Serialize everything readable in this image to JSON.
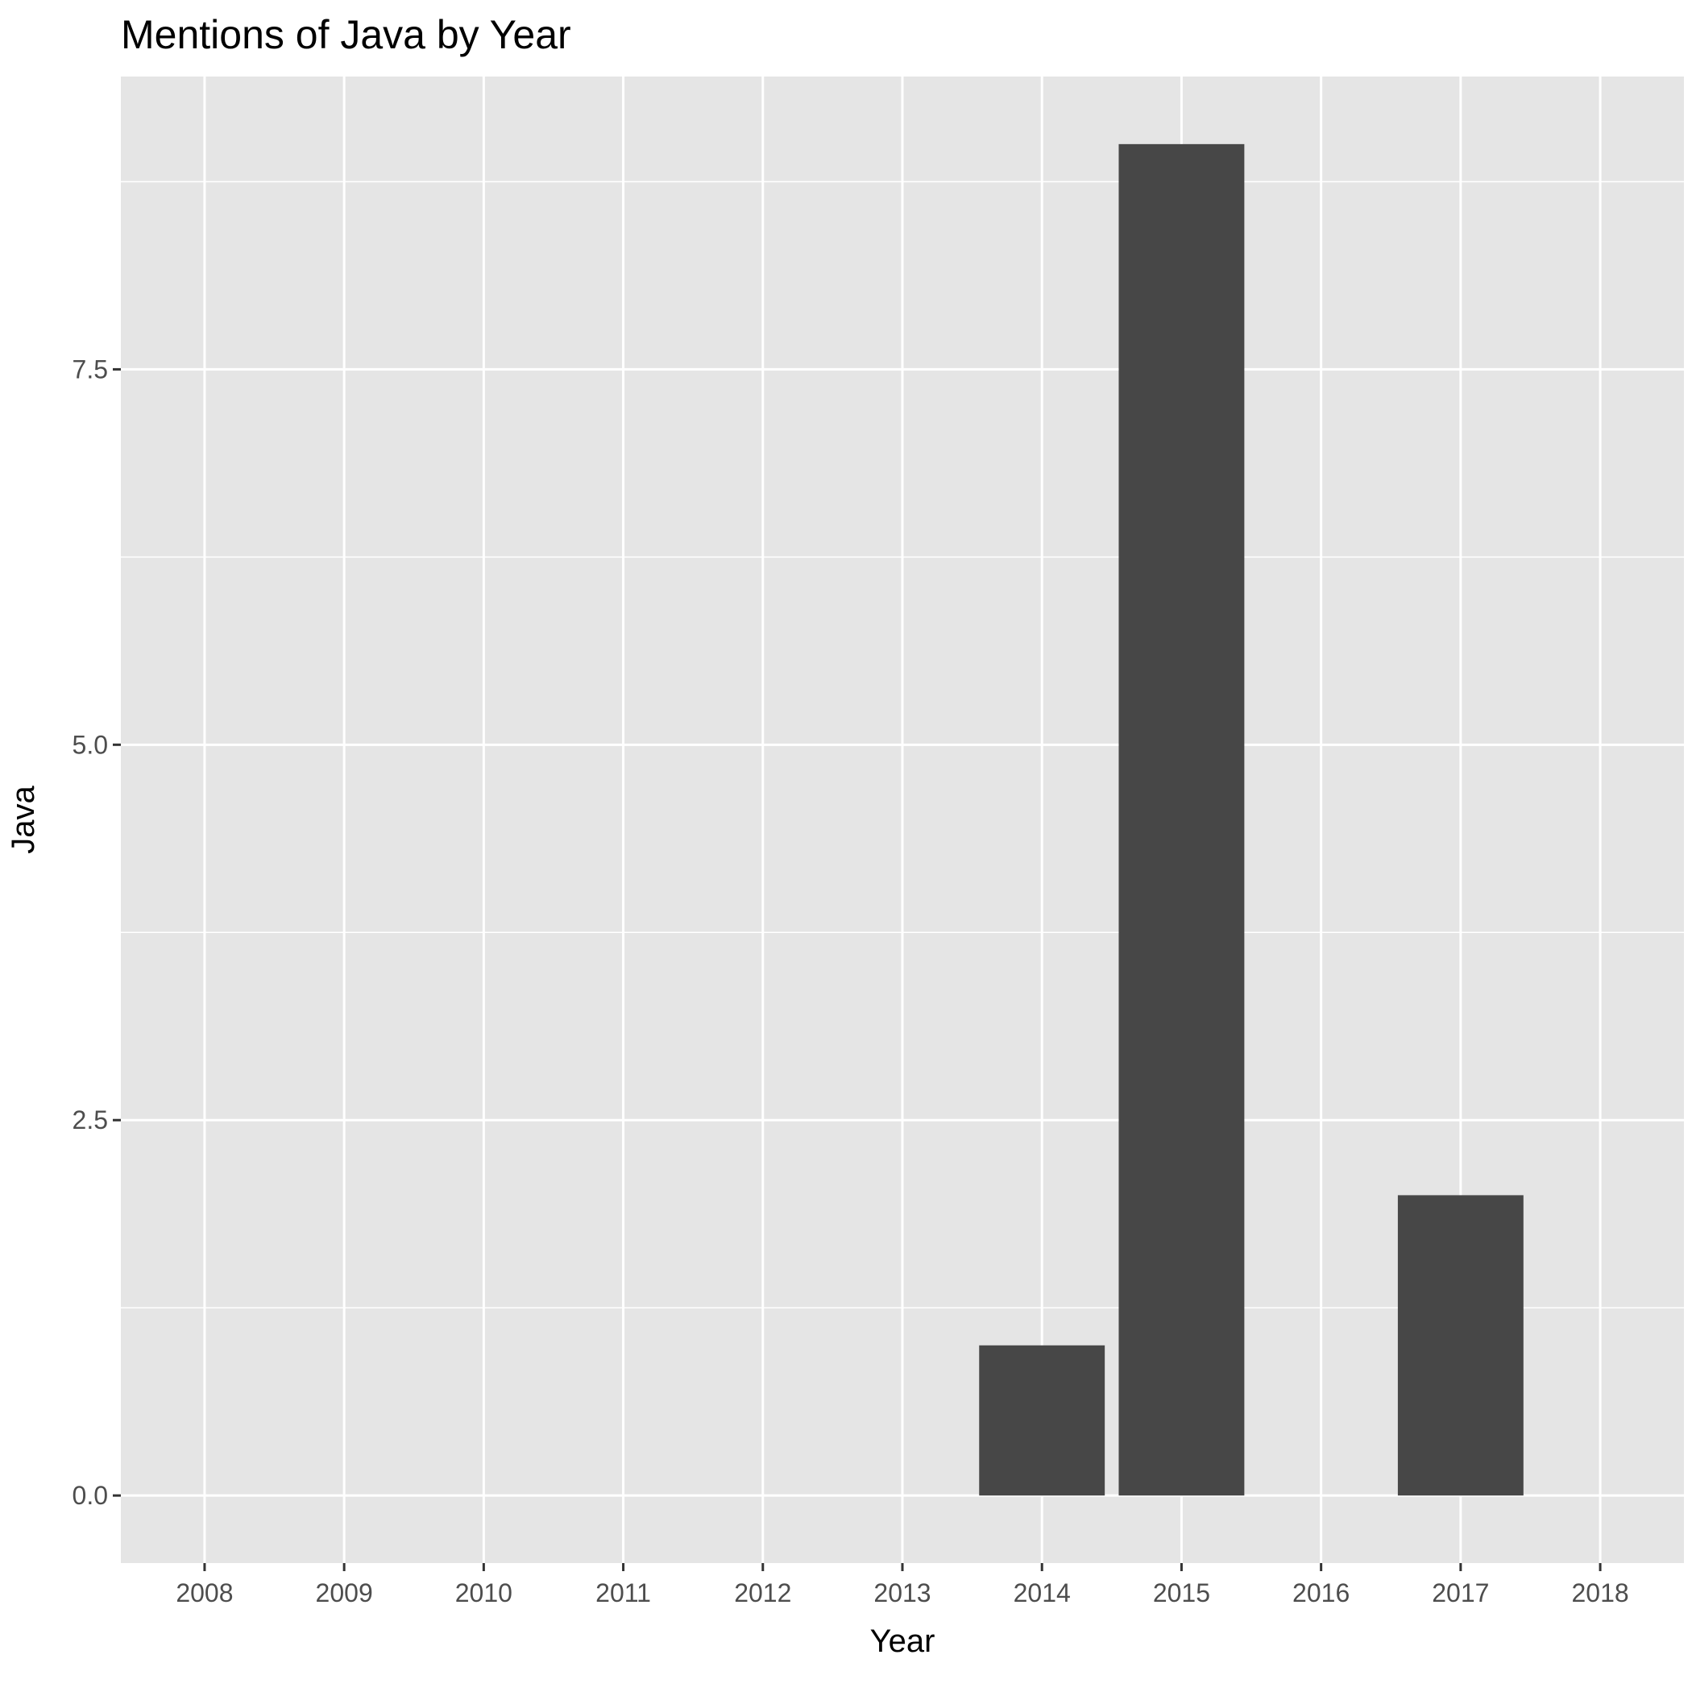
{
  "chart_data": {
    "type": "bar",
    "title": "Mentions of Java by Year",
    "xlabel": "Year",
    "ylabel": "Java",
    "categories": [
      "2008",
      "2009",
      "2010",
      "2011",
      "2012",
      "2013",
      "2014",
      "2015",
      "2016",
      "2017",
      "2018"
    ],
    "values": [
      0,
      0,
      0,
      0,
      0,
      0,
      1,
      9,
      0,
      2,
      0
    ],
    "ylim": [
      -0.45,
      9.45
    ],
    "yticks": [
      0.0,
      2.5,
      5.0,
      7.5
    ],
    "ytick_labels": [
      "0.0",
      "2.5",
      "5.0",
      "7.5"
    ],
    "grid": true,
    "legend": "none",
    "colors": {
      "panel_background": "#e5e5e5",
      "grid_line": "#ffffff",
      "bar_fill": "#474747",
      "tick_text": "#4d4d4d",
      "tick_mark": "#333333"
    }
  }
}
